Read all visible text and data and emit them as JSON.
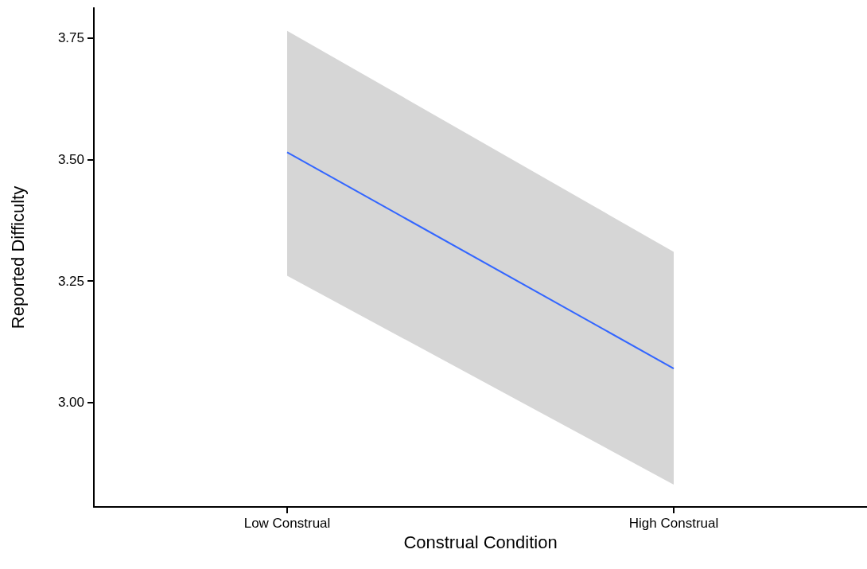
{
  "chart_data": {
    "type": "line",
    "xlabel": "Construal Condition",
    "ylabel": "Reported Difficulty",
    "categories": [
      "Low Construal",
      "High Construal"
    ],
    "series": [
      {
        "color": "#3366ff",
        "values": [
          3.515,
          3.07
        ],
        "lower": [
          3.261,
          2.831
        ],
        "upper": [
          3.765,
          3.31
        ]
      }
    ],
    "ylim": [
      2.785,
      3.812
    ],
    "yticks": [
      {
        "value": 3,
        "label": "3.00"
      },
      {
        "value": 3.25,
        "label": "3.25"
      },
      {
        "value": 3.5,
        "label": "3.50"
      },
      {
        "value": 3.75,
        "label": "3.75"
      }
    ],
    "grid": false,
    "marker": "none",
    "line_style": "solid"
  }
}
